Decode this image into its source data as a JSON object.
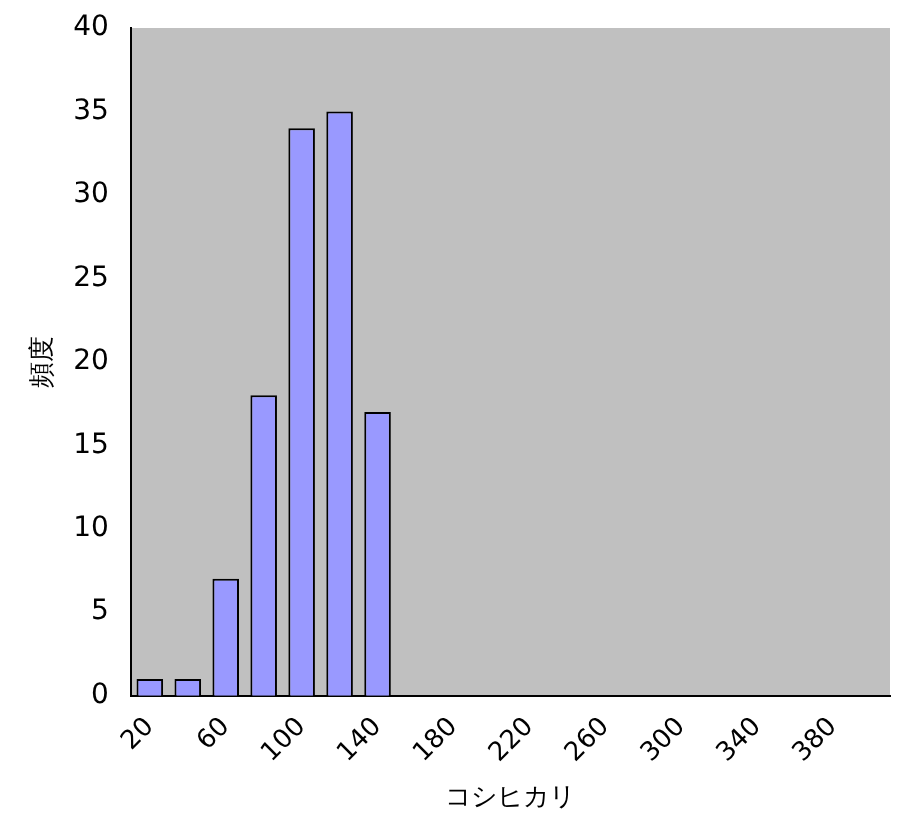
{
  "chart_data": {
    "type": "bar",
    "xlabel": "コシヒカリ",
    "ylabel": "頻度",
    "categories": [
      "20",
      null,
      "60",
      null,
      "100",
      null,
      "140",
      null,
      "180",
      null,
      "220",
      null,
      "260",
      null,
      "300",
      null,
      "340",
      null,
      "380",
      null
    ],
    "values": [
      1,
      1,
      7,
      18,
      34,
      35,
      17,
      0,
      0,
      0,
      0,
      0,
      0,
      0,
      0,
      0,
      0,
      0,
      0,
      0
    ],
    "color": "#9999ff",
    "ylim": [
      0,
      40
    ],
    "yticks": [
      0,
      5,
      10,
      15,
      20,
      25,
      30,
      35,
      40
    ],
    "grid": false,
    "legend": false
  }
}
